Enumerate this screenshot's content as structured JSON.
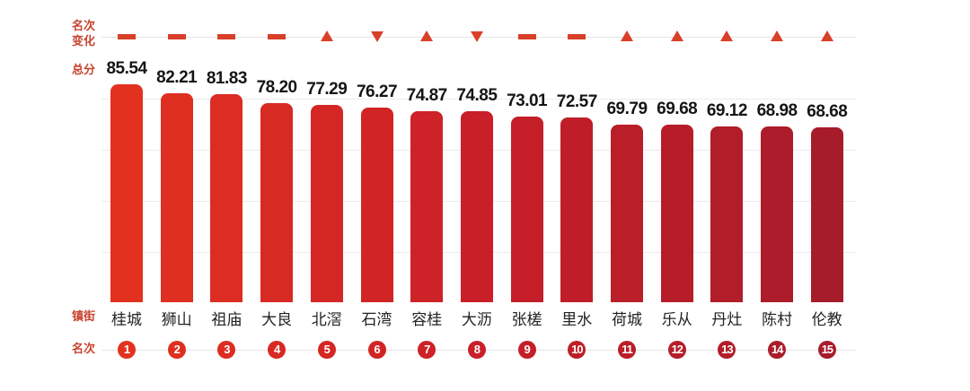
{
  "labels": {
    "rank_change": "名次\n变化",
    "rank_change_line1": "名次",
    "rank_change_line2": "变化",
    "total_score": "总分",
    "town": "镇街",
    "rank": "名次"
  },
  "colors": {
    "bar_start": "#e2321f",
    "bar_mid": "#c91f28",
    "bar_end": "#a71c2a",
    "label": "#c8432f",
    "marker": "#d8402a",
    "rank_circle": "#c8321f"
  },
  "chart_data": {
    "type": "bar",
    "title": "",
    "xlabel": "镇街",
    "ylabel": "总分",
    "categories": [
      "桂城",
      "狮山",
      "祖庙",
      "大良",
      "北滘",
      "石湾",
      "容桂",
      "大沥",
      "张槎",
      "里水",
      "荷城",
      "乐从",
      "丹灶",
      "陈村",
      "伦教"
    ],
    "values": [
      85.54,
      82.21,
      81.83,
      78.2,
      77.29,
      76.27,
      74.87,
      74.85,
      73.01,
      72.57,
      69.79,
      69.68,
      69.12,
      68.98,
      68.68
    ],
    "value_labels": [
      "85.54",
      "82.21",
      "81.83",
      "78.20",
      "77.29",
      "76.27",
      "74.87",
      "74.85",
      "73.01",
      "72.57",
      "69.79",
      "69.68",
      "69.12",
      "68.98",
      "68.68"
    ],
    "ranks": [
      "1",
      "2",
      "3",
      "4",
      "5",
      "6",
      "7",
      "8",
      "9",
      "10",
      "11",
      "12",
      "13",
      "14",
      "15"
    ],
    "rank_change": [
      "flat",
      "flat",
      "flat",
      "flat",
      "up",
      "down",
      "up",
      "down",
      "flat",
      "flat",
      "up",
      "up",
      "up",
      "up",
      "up"
    ],
    "ylim": [
      0,
      90
    ],
    "grid": true,
    "legend": null
  }
}
